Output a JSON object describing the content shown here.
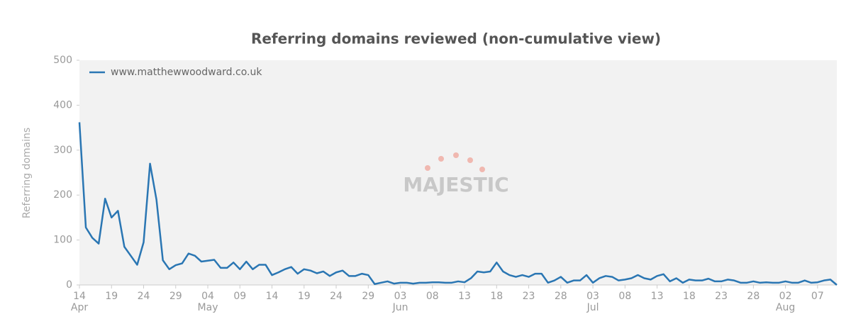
{
  "chart_data": {
    "type": "line",
    "title": "Referring domains reviewed (non-cumulative view)",
    "y_label": "Referring domains",
    "watermark": "MAJESTIC",
    "categories": [
      "14",
      null,
      null,
      null,
      null,
      "19",
      null,
      null,
      null,
      null,
      "24",
      null,
      null,
      null,
      null,
      "29",
      null,
      null,
      null,
      null,
      "04",
      null,
      null,
      null,
      null,
      "09",
      null,
      null,
      null,
      null,
      "14",
      null,
      null,
      null,
      null,
      "19",
      null,
      null,
      null,
      null,
      "24",
      null,
      null,
      null,
      null,
      "29",
      null,
      null,
      null,
      null,
      "03",
      null,
      null,
      null,
      null,
      "08",
      null,
      null,
      null,
      null,
      "13",
      null,
      null,
      null,
      null,
      "18",
      null,
      null,
      null,
      null,
      "23",
      null,
      null,
      null,
      null,
      "28",
      null,
      null,
      null,
      null,
      "03",
      null,
      null,
      null,
      null,
      "08",
      null,
      null,
      null,
      null,
      "13",
      null,
      null,
      null,
      null,
      "18",
      null,
      null,
      null,
      null,
      "23",
      null,
      null,
      null,
      null,
      "28",
      null,
      null,
      null,
      null,
      "02",
      null,
      null,
      null,
      null,
      "07",
      null,
      null,
      null
    ],
    "category_months": [
      "Apr",
      null,
      null,
      null,
      null,
      null,
      null,
      null,
      null,
      null,
      null,
      null,
      null,
      null,
      null,
      null,
      null,
      null,
      null,
      null,
      "May",
      null,
      null,
      null,
      null,
      null,
      null,
      null,
      null,
      null,
      null,
      null,
      null,
      null,
      null,
      null,
      null,
      null,
      null,
      null,
      null,
      null,
      null,
      null,
      null,
      null,
      null,
      null,
      null,
      null,
      "Jun",
      null,
      null,
      null,
      null,
      null,
      null,
      null,
      null,
      null,
      null,
      null,
      null,
      null,
      null,
      null,
      null,
      null,
      null,
      null,
      null,
      null,
      null,
      null,
      null,
      null,
      null,
      null,
      null,
      null,
      "Jul",
      null,
      null,
      null,
      null,
      null,
      null,
      null,
      null,
      null,
      null,
      null,
      null,
      null,
      null,
      null,
      null,
      null,
      null,
      null,
      null,
      null,
      null,
      null,
      null,
      null,
      null,
      null,
      null,
      null,
      "Aug",
      null,
      null,
      null,
      null,
      null,
      null,
      null,
      null
    ],
    "series": [
      {
        "name": "www.matthewwoodward.co.uk",
        "color": "#2a76b3",
        "values": [
          362,
          128,
          105,
          92,
          192,
          150,
          165,
          85,
          65,
          45,
          95,
          270,
          190,
          55,
          35,
          44,
          48,
          70,
          65,
          52,
          54,
          56,
          38,
          38,
          50,
          35,
          52,
          35,
          45,
          45,
          22,
          28,
          35,
          40,
          25,
          35,
          32,
          26,
          30,
          20,
          28,
          32,
          20,
          20,
          25,
          22,
          2,
          5,
          8,
          3,
          5,
          5,
          3,
          5,
          5,
          6,
          6,
          5,
          5,
          8,
          6,
          15,
          30,
          28,
          30,
          50,
          30,
          22,
          18,
          22,
          18,
          25,
          25,
          5,
          10,
          18,
          5,
          10,
          10,
          22,
          5,
          15,
          20,
          18,
          10,
          12,
          15,
          22,
          15,
          12,
          20,
          24,
          8,
          15,
          5,
          12,
          10,
          10,
          14,
          8,
          8,
          12,
          10,
          5,
          5,
          8,
          5,
          6,
          5,
          5,
          8,
          5,
          5,
          10,
          5,
          6,
          10,
          12,
          0
        ]
      }
    ],
    "ylim": [
      0,
      500
    ],
    "yticks": [
      0,
      100,
      200,
      300,
      400,
      500
    ],
    "legend": "top-left",
    "grid": false
  }
}
